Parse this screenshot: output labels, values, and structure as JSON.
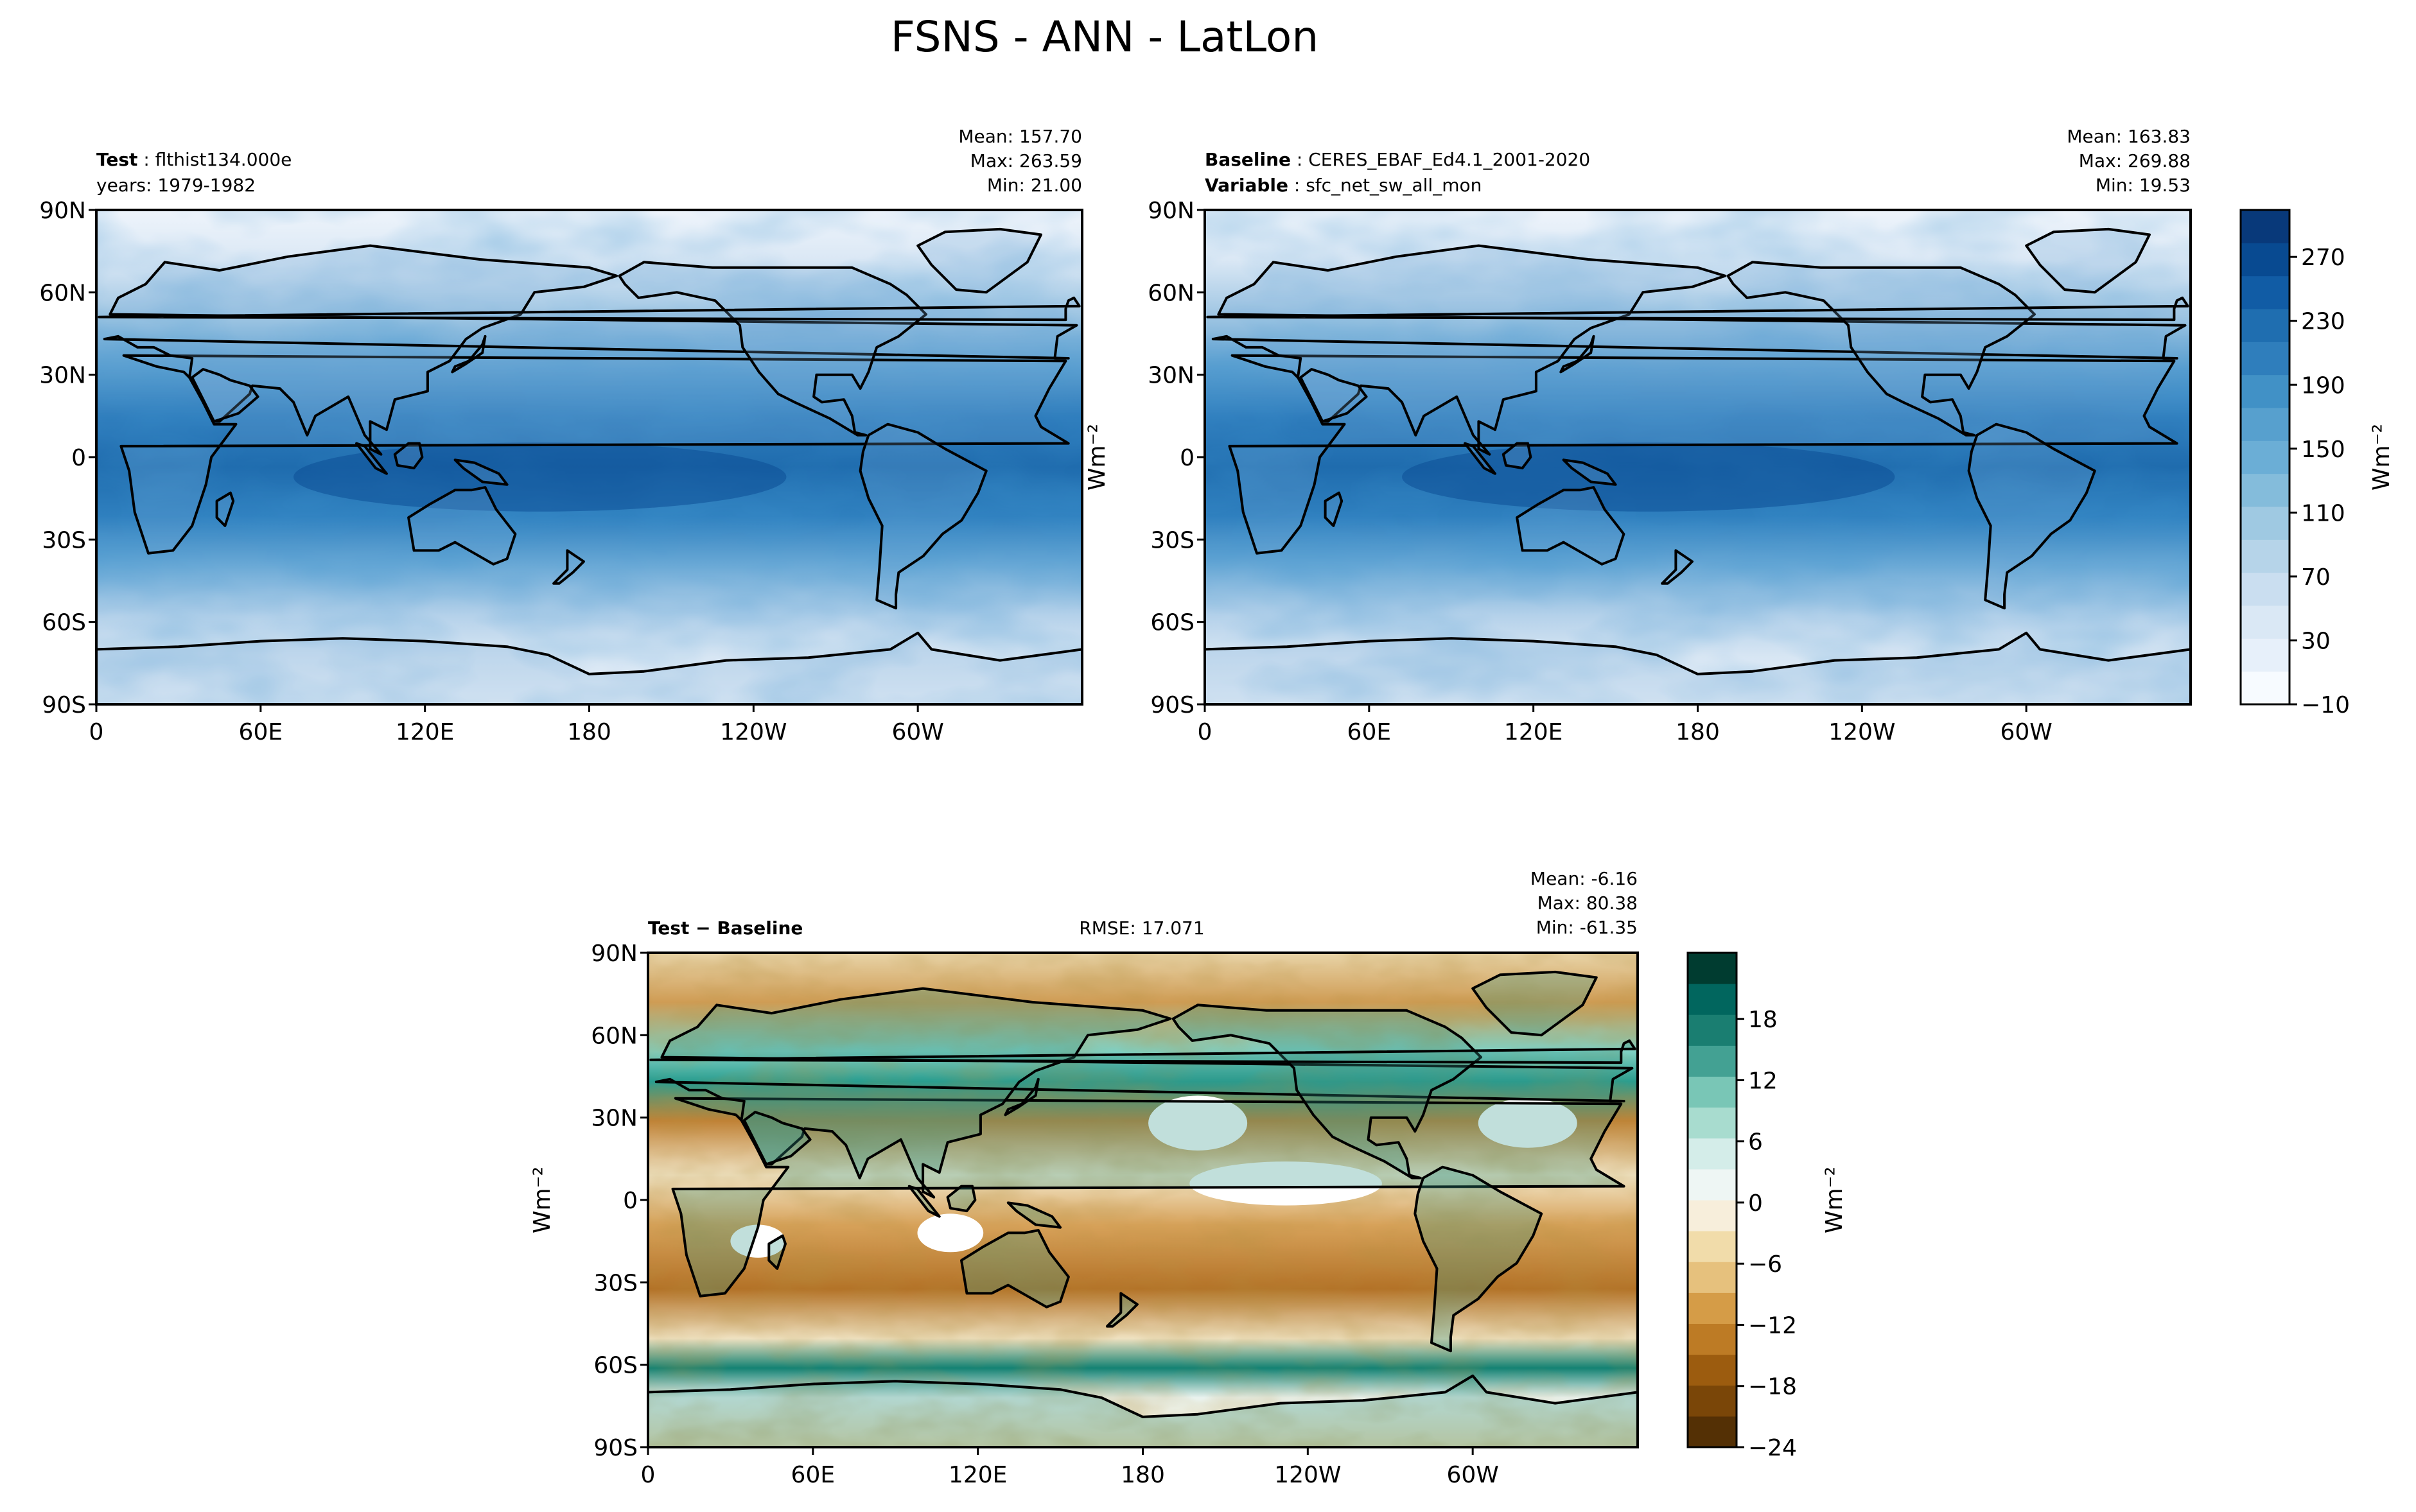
{
  "suptitle": "FSNS - ANN - LatLon",
  "lat_ticks": [
    "90N",
    "60N",
    "30N",
    "0",
    "30S",
    "60S",
    "90S"
  ],
  "lon_ticks": [
    "0",
    "60E",
    "120E",
    "180",
    "120W",
    "60W"
  ],
  "panels": {
    "test": {
      "header_bold": "Test",
      "header_value": "flthist134.000e",
      "years": "years: 1979-1982",
      "mean": "Mean: 157.70",
      "max": "Max: 263.59",
      "min": "Min: 21.00"
    },
    "baseline": {
      "header_bold": "Baseline",
      "header_value": "CERES_EBAF_Ed4.1_2001-2020",
      "variable_bold": "Variable",
      "variable_value": "sfc_net_sw_all_mon",
      "mean": "Mean: 163.83",
      "max": "Max: 269.88",
      "min": "Min: 19.53",
      "unit_label": "Wm⁻²"
    },
    "diff": {
      "header": "Test − Baseline",
      "rmse": "RMSE: 17.071",
      "mean": "Mean: -6.16",
      "max": "Max: 80.38",
      "min": "Min: -61.35",
      "unit_label": "Wm⁻²"
    }
  },
  "colorbar_main": {
    "ticks": [
      "270",
      "230",
      "190",
      "150",
      "110",
      "70",
      "30",
      "−10"
    ],
    "label": "Wm⁻²",
    "colors": [
      "#f7fbff",
      "#e7f0fa",
      "#dae8f5",
      "#cadef0",
      "#b6d4e9",
      "#9fc9e2",
      "#84bcdb",
      "#6baed6",
      "#57a0ce",
      "#4191c6",
      "#2f7ebc",
      "#1f6eb0",
      "#115ca5",
      "#084a91",
      "#08397a"
    ]
  },
  "colorbar_diff": {
    "ticks": [
      "18",
      "12",
      "6",
      "0",
      "−6",
      "−12",
      "−18",
      "−24"
    ],
    "label": "Wm⁻²",
    "colors": [
      "#543005",
      "#7a4608",
      "#9c5c0f",
      "#bd7b25",
      "#d59c47",
      "#e6c17d",
      "#f1dcaa",
      "#f7eedb",
      "#eef6f4",
      "#d4ede9",
      "#a8dccf",
      "#79c6b6",
      "#43a193",
      "#1a7e71",
      "#01665e",
      "#003c30"
    ]
  },
  "chart_data": [
    {
      "type": "heatmap",
      "title": "Test: flthist134.000e",
      "subtitle": "years: 1979-1982",
      "stats": {
        "mean": 157.7,
        "max": 263.59,
        "min": 21.0
      },
      "x_ticks": [
        "0",
        "60E",
        "120E",
        "180",
        "120W",
        "60W"
      ],
      "y_ticks": [
        "90N",
        "60N",
        "30N",
        "0",
        "30S",
        "60S",
        "90S"
      ],
      "value_range": [
        -10,
        290
      ]
    },
    {
      "type": "heatmap",
      "title": "Baseline: CERES_EBAF_Ed4.1_2001-2020",
      "subtitle": "Variable: sfc_net_sw_all_mon",
      "stats": {
        "mean": 163.83,
        "max": 269.88,
        "min": 19.53
      },
      "x_ticks": [
        "0",
        "60E",
        "120E",
        "180",
        "120W",
        "60W"
      ],
      "y_ticks": [
        "90N",
        "60N",
        "30N",
        "0",
        "30S",
        "60S",
        "90S"
      ],
      "colorbar_ticks": [
        270,
        230,
        190,
        150,
        110,
        70,
        30,
        -10
      ],
      "value_range": [
        -10,
        290
      ],
      "ylabel": "Wm⁻²"
    },
    {
      "type": "heatmap",
      "title": "Test − Baseline",
      "rmse": 17.071,
      "stats": {
        "mean": -6.16,
        "max": 80.38,
        "min": -61.35
      },
      "x_ticks": [
        "0",
        "60E",
        "120E",
        "180",
        "120W",
        "60W"
      ],
      "y_ticks": [
        "90N",
        "60N",
        "30N",
        "0",
        "30S",
        "60S",
        "90S"
      ],
      "colorbar_ticks": [
        18,
        12,
        6,
        0,
        -6,
        -12,
        -18,
        -24
      ],
      "value_range": [
        -24,
        22
      ],
      "ylabel": "Wm⁻²"
    }
  ]
}
